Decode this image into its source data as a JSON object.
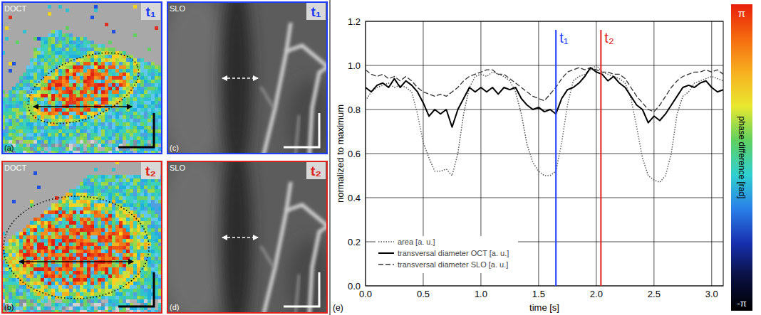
{
  "panels": [
    {
      "label": "(a)",
      "modality": "DOCT",
      "time": "t₁",
      "color": "#1e3cff"
    },
    {
      "label": "(b)",
      "modality": "DOCT",
      "time": "t₂",
      "color": "#e0201a"
    },
    {
      "label": "(c)",
      "modality": "SLO",
      "time": "t₁",
      "color": "#1e3cff"
    },
    {
      "label": "(d)",
      "modality": "SLO",
      "time": "t₂",
      "color": "#e0201a"
    }
  ],
  "colorbar": {
    "title": "phase difference [rad]",
    "max_label": "π",
    "min_label": "-π",
    "colors": [
      "#e8200a",
      "#f56a10",
      "#f7b020",
      "#e8e830",
      "#60d060",
      "#30d0d0",
      "#2a80e8",
      "#1830b0",
      "#0a1040",
      "#000000"
    ]
  },
  "chart_data": {
    "type": "line",
    "panel_label": "(e)",
    "x_label": "time [s]",
    "y_label": "normalized to maximum",
    "x": [
      0,
      0.05,
      0.1,
      0.15,
      0.2,
      0.25,
      0.3,
      0.35,
      0.4,
      0.45,
      0.5,
      0.55,
      0.6,
      0.65,
      0.7,
      0.75,
      0.8,
      0.85,
      0.9,
      0.95,
      1.0,
      1.05,
      1.1,
      1.15,
      1.2,
      1.25,
      1.3,
      1.35,
      1.4,
      1.45,
      1.5,
      1.55,
      1.6,
      1.65,
      1.7,
      1.75,
      1.8,
      1.85,
      1.9,
      1.95,
      2.0,
      2.05,
      2.1,
      2.15,
      2.2,
      2.25,
      2.3,
      2.35,
      2.4,
      2.45,
      2.5,
      2.55,
      2.6,
      2.65,
      2.7,
      2.75,
      2.8,
      2.85,
      2.9,
      2.95,
      3.0,
      3.05,
      3.1
    ],
    "xlim": [
      0,
      3.1
    ],
    "xticks": [
      {
        "value": 0,
        "label": "0.0"
      },
      {
        "value": 0.5,
        "label": "0.5"
      },
      {
        "value": 1,
        "label": "1.0"
      },
      {
        "value": 1.5,
        "label": "1.5"
      },
      {
        "value": 2,
        "label": "2.0"
      },
      {
        "value": 2.5,
        "label": "2.5"
      },
      {
        "value": 3,
        "label": "3.0"
      }
    ],
    "ylim": [
      0,
      1.2
    ],
    "yticks": [
      {
        "value": 0,
        "label": "0.0"
      },
      {
        "value": 0.2,
        "label": "0.2"
      },
      {
        "value": 0.4,
        "label": "0.4"
      },
      {
        "value": 0.6,
        "label": "0.6"
      },
      {
        "value": 0.8,
        "label": "0.8"
      },
      {
        "value": 1,
        "label": "1.0"
      },
      {
        "value": 1.2,
        "label": "1.2"
      }
    ],
    "grid": true,
    "legend": "bottom-left",
    "series": [
      {
        "name": "area [a. u.]",
        "color": "#555555",
        "line_style": "dotted",
        "values": [
          0.84,
          0.88,
          0.9,
          0.91,
          0.92,
          0.9,
          0.91,
          0.9,
          0.88,
          0.78,
          0.65,
          0.58,
          0.52,
          0.52,
          0.53,
          0.5,
          0.6,
          0.78,
          0.9,
          0.95,
          0.96,
          0.95,
          0.97,
          0.96,
          0.95,
          0.93,
          0.88,
          0.78,
          0.64,
          0.56,
          0.52,
          0.5,
          0.5,
          0.52,
          0.65,
          0.82,
          0.93,
          0.95,
          0.96,
          0.98,
          1.0,
          0.97,
          0.96,
          0.95,
          0.94,
          0.92,
          0.85,
          0.72,
          0.58,
          0.5,
          0.48,
          0.47,
          0.5,
          0.6,
          0.78,
          0.86,
          0.88,
          0.92,
          0.93,
          0.94,
          0.95,
          0.94,
          0.93
        ]
      },
      {
        "name": "transversal diameter OCT [a. u.]",
        "color": "#000000",
        "line_style": "solid",
        "values": [
          0.9,
          0.88,
          0.91,
          0.92,
          0.9,
          0.94,
          0.9,
          0.93,
          0.91,
          0.88,
          0.83,
          0.77,
          0.8,
          0.78,
          0.8,
          0.72,
          0.8,
          0.85,
          0.9,
          0.88,
          0.9,
          0.88,
          0.9,
          0.87,
          0.9,
          0.89,
          0.9,
          0.85,
          0.82,
          0.8,
          0.81,
          0.79,
          0.8,
          0.78,
          0.85,
          0.89,
          0.9,
          0.92,
          0.95,
          0.99,
          0.97,
          0.96,
          0.93,
          0.95,
          0.92,
          0.9,
          0.86,
          0.82,
          0.8,
          0.74,
          0.77,
          0.75,
          0.78,
          0.82,
          0.86,
          0.9,
          0.91,
          0.9,
          0.92,
          0.93,
          0.9,
          0.88,
          0.89
        ]
      },
      {
        "name": "transversal diameter SLO [a. u.]",
        "color": "#333333",
        "line_style": "dashed",
        "values": [
          0.98,
          0.96,
          0.95,
          0.96,
          0.94,
          0.95,
          0.93,
          0.95,
          0.93,
          0.9,
          0.88,
          0.87,
          0.86,
          0.87,
          0.86,
          0.88,
          0.9,
          0.93,
          0.95,
          0.96,
          0.97,
          0.98,
          0.98,
          0.96,
          0.96,
          0.94,
          0.92,
          0.9,
          0.88,
          0.86,
          0.85,
          0.84,
          0.87,
          0.9,
          0.94,
          0.97,
          0.98,
          0.99,
          0.98,
          0.99,
          0.98,
          0.97,
          0.97,
          0.96,
          0.96,
          0.94,
          0.9,
          0.86,
          0.83,
          0.8,
          0.79,
          0.82,
          0.86,
          0.9,
          0.93,
          0.95,
          0.96,
          0.97,
          0.97,
          0.98,
          0.97,
          0.98,
          0.96
        ]
      }
    ],
    "annotations": [
      {
        "x": 1.65,
        "label": "t₁",
        "color": "#1e3cff"
      },
      {
        "x": 2.04,
        "label": "t₂",
        "color": "#e0201a"
      }
    ]
  }
}
